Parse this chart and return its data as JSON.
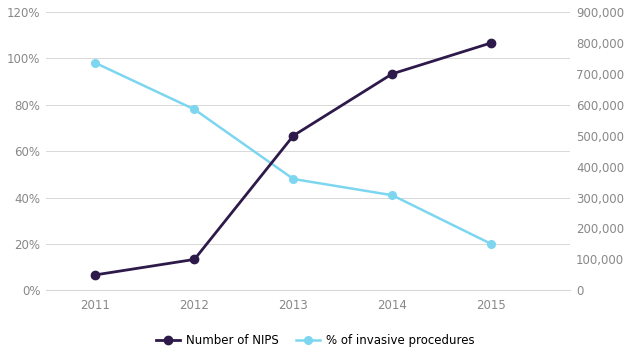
{
  "years": [
    2011,
    2012,
    2013,
    2014,
    2015
  ],
  "nips_values": [
    50000,
    100000,
    500000,
    700000,
    800000
  ],
  "pct_values": [
    98,
    78,
    48,
    41,
    20
  ],
  "nips_color": "#2e1a4a",
  "pct_color": "#7dd6f0",
  "left_ylim": [
    0,
    120
  ],
  "right_ylim": [
    0,
    900000
  ],
  "left_yticks": [
    0,
    20,
    40,
    60,
    80,
    100,
    120
  ],
  "right_yticks": [
    0,
    100000,
    200000,
    300000,
    400000,
    500000,
    600000,
    700000,
    800000,
    900000
  ],
  "legend_nips": "Number of NIPS",
  "legend_pct": "% of invasive procedures",
  "background_color": "#ffffff",
  "grid_color": "#d8d8d8",
  "tick_color": "#888888",
  "tick_fontsize": 8.5,
  "xlim": [
    2010.5,
    2015.8
  ]
}
